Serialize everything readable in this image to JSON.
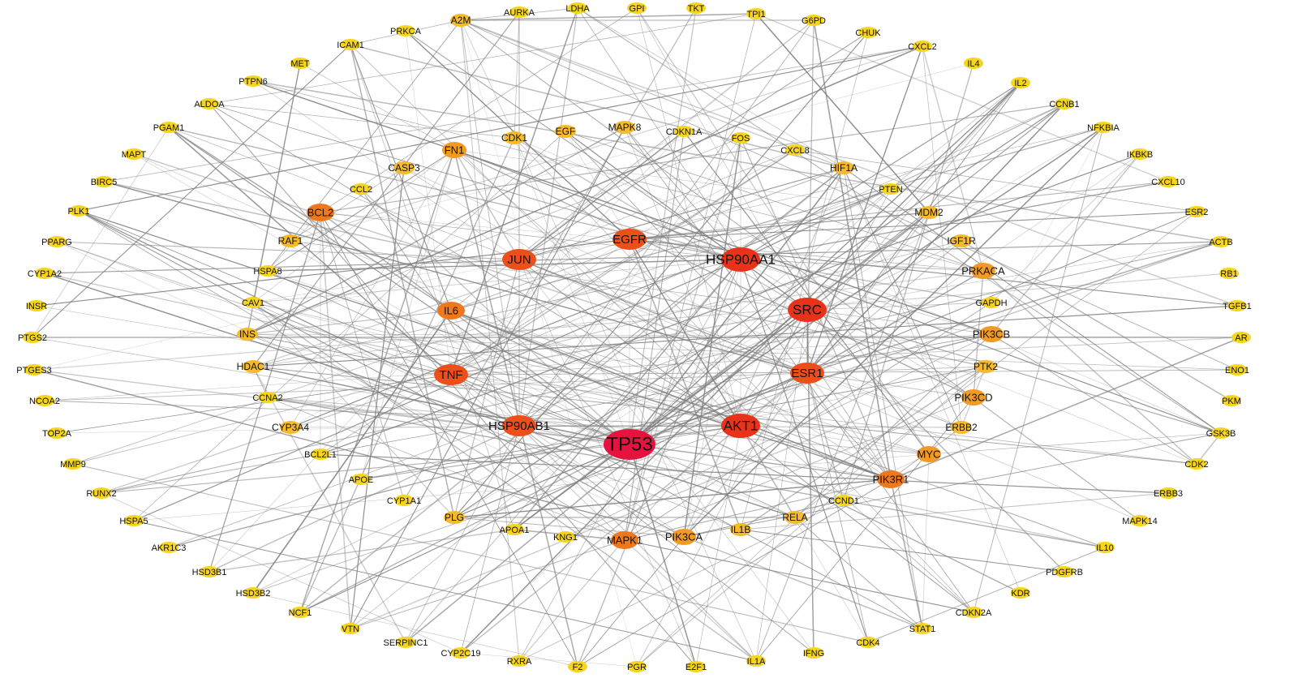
{
  "nodes": [
    "AURKA",
    "LDHA",
    "GPI",
    "TKT",
    "TPI1",
    "G6PD",
    "A2M",
    "PRKCA",
    "ICAM1",
    "CHUK",
    "CXCL2",
    "MET",
    "IL4",
    "PTPN6",
    "IL2",
    "ALDOA",
    "CCNB1",
    "PGAM1",
    "NFKBIA",
    "MAPT",
    "IKBKB",
    "BIRC5",
    "CXCL10",
    "PLK1",
    "ESR2",
    "PPARG",
    "ACTB",
    "CYP1A2",
    "RB1",
    "INSR",
    "TGFB1",
    "PTGS2",
    "AR",
    "PTGES3",
    "ENO1",
    "NCOA2",
    "PKM",
    "TOP2A",
    "GSK3B",
    "MMP9",
    "CDK2",
    "RUNX2",
    "ERBB3",
    "HSPA5",
    "MAPK14",
    "AKR1C3",
    "IL10",
    "HSD3B1",
    "PDGFRB",
    "HSD3B2",
    "KDR",
    "NCF1",
    "CDKN2A",
    "VTN",
    "STAT1",
    "SERPINC1",
    "CDK4",
    "CYP2C19",
    "IFNG",
    "RXRA",
    "IL1A",
    "F2",
    "E2F1",
    "PGR",
    "CDK1",
    "EGF",
    "MAPK8",
    "CDKN1A",
    "FOS",
    "FN1",
    "CXCL8",
    "CASP3",
    "HIF1A",
    "CCL2",
    "PTEN",
    "BCL2",
    "MDM2",
    "RAF1",
    "IGF1R",
    "HSPA8",
    "PRKACA",
    "CAV1",
    "GAPDH",
    "INS",
    "PIK3CB",
    "HDAC1",
    "PTK2",
    "CCNA2",
    "PIK3CD",
    "CYP3A4",
    "ERBB2",
    "BCL2L1",
    "MYC",
    "APOE",
    "PIK3R1",
    "CYP1A1",
    "CCND1",
    "PLG",
    "RELA",
    "APOA1",
    "IL1B",
    "KNG1",
    "PIK3CA",
    "MAPK1",
    "EGFR",
    "HSP90AA1",
    "JUN",
    "SRC",
    "IL6",
    "ESR1",
    "TNF",
    "HSP90AB1",
    "AKT1",
    "TP53"
  ]
}
